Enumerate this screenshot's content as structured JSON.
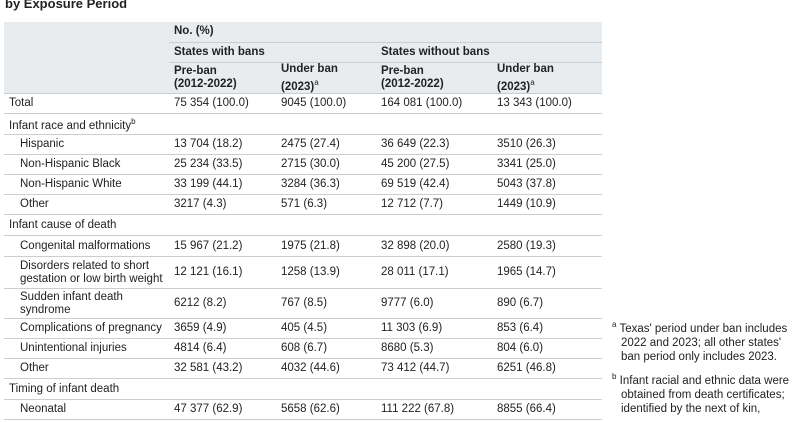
{
  "title": "by Exposure Period",
  "header": {
    "unit": "No. (%)",
    "groups": [
      "States with bans",
      "States without bans"
    ],
    "columns": [
      {
        "label": "Pre-ban",
        "sub": "(2012-2022)"
      },
      {
        "label": "Under ban",
        "sub": "(2023)",
        "mark": "a"
      },
      {
        "label": "Pre-ban",
        "sub": "(2012-2022)"
      },
      {
        "label": "Under ban",
        "sub": "(2023)",
        "mark": "a"
      }
    ]
  },
  "rows": [
    {
      "kind": "total",
      "label": "Total",
      "cells": [
        "75 354 (100.0)",
        "9045 (100.0)",
        "164 081 (100.0)",
        "13 343 (100.0)"
      ]
    },
    {
      "kind": "section",
      "label": "Infant race and ethnicity",
      "mark": "b"
    },
    {
      "kind": "sub",
      "label": "Hispanic",
      "cells": [
        "13 704 (18.2)",
        "2475 (27.4)",
        "36 649 (22.3)",
        "3510 (26.3)"
      ]
    },
    {
      "kind": "sub",
      "label": "Non-Hispanic Black",
      "cells": [
        "25 234 (33.5)",
        "2715 (30.0)",
        "45 200 (27.5)",
        "3341 (25.0)"
      ]
    },
    {
      "kind": "sub",
      "label": "Non-Hispanic White",
      "cells": [
        "33 199 (44.1)",
        "3284 (36.3)",
        "69 519 (42.4)",
        "5043 (37.8)"
      ]
    },
    {
      "kind": "sub",
      "label": "Other",
      "cells": [
        "3217 (4.3)",
        "571 (6.3)",
        "12 712 (7.7)",
        "1449 (10.9)"
      ]
    },
    {
      "kind": "section",
      "label": "Infant cause of death"
    },
    {
      "kind": "sub",
      "label": "Congenital malformations",
      "cells": [
        "15 967 (21.2)",
        "1975 (21.8)",
        "32 898 (20.0)",
        "2580 (19.3)"
      ]
    },
    {
      "kind": "sub2",
      "label": "Disorders related to short gestation or low birth weight",
      "cells": [
        "12 121 (16.1)",
        "1258 (13.9)",
        "28 011 (17.1)",
        "1965 (14.7)"
      ]
    },
    {
      "kind": "sub2",
      "label": "Sudden infant death syndrome",
      "cells": [
        "6212 (8.2)",
        "767 (8.5)",
        "9777 (6.0)",
        "890 (6.7)"
      ]
    },
    {
      "kind": "sub",
      "label": "Complications of pregnancy",
      "cells": [
        "3659 (4.9)",
        "405 (4.5)",
        "11 303 (6.9)",
        "853 (6.4)"
      ]
    },
    {
      "kind": "sub",
      "label": "Unintentional injuries",
      "cells": [
        "4814 (6.4)",
        "608 (6.7)",
        "8680 (5.3)",
        "804 (6.0)"
      ]
    },
    {
      "kind": "sub",
      "label": "Other",
      "cells": [
        "32 581 (43.2)",
        "4032 (44.6)",
        "73 412 (44.7)",
        "6251 (46.8)"
      ]
    },
    {
      "kind": "section",
      "label": "Timing of infant death"
    },
    {
      "kind": "sub",
      "label": "Neonatal",
      "cells": [
        "47 377 (62.9)",
        "5658 (62.6)",
        "111 222 (67.8)",
        "8855 (66.4)"
      ]
    }
  ],
  "footnotes": [
    {
      "mark": "a",
      "text": "Texas' period under ban includes 2022 and 2023; all other states' ban period only includes 2023."
    },
    {
      "mark": "b",
      "text": "Infant racial and ethnic data were obtained from death certificates; identified by the next of kin,"
    }
  ]
}
